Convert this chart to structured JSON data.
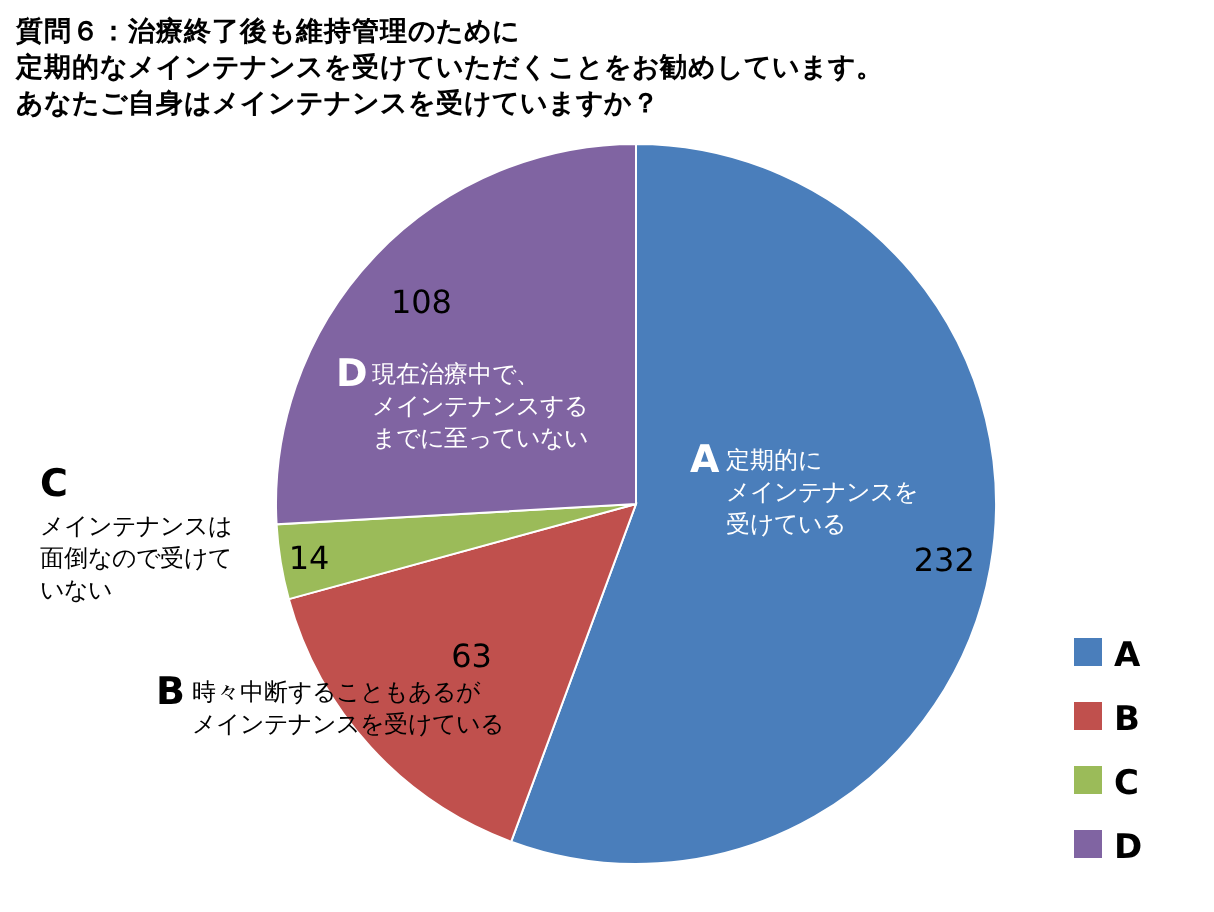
{
  "chart_data": {
    "type": "pie",
    "title": "質問６：治療終了後も維持管理のために定期的なメインテナンスを受けていただくことをお勧めしています。あなたご自身はメインテナンスを受けていますか？",
    "categories": [
      "A",
      "B",
      "C",
      "D"
    ],
    "values": [
      232,
      63,
      14,
      108
    ],
    "colors": [
      "#4a7ebb",
      "#c0504d",
      "#9bbb59",
      "#8064a2"
    ],
    "data_labels": true,
    "legend": "right",
    "annotations": [
      {
        "text": "定期的にメインテナンスを受けている",
        "x": "A"
      },
      {
        "text": "時々中断することもあるがメインテナンスを受けている",
        "x": "B"
      },
      {
        "text": "メインテナンスは面倒なので受けていない",
        "x": "C"
      },
      {
        "text": "現在治療中で、メインテナンスするまでに至っていない",
        "x": "D"
      }
    ]
  }
}
